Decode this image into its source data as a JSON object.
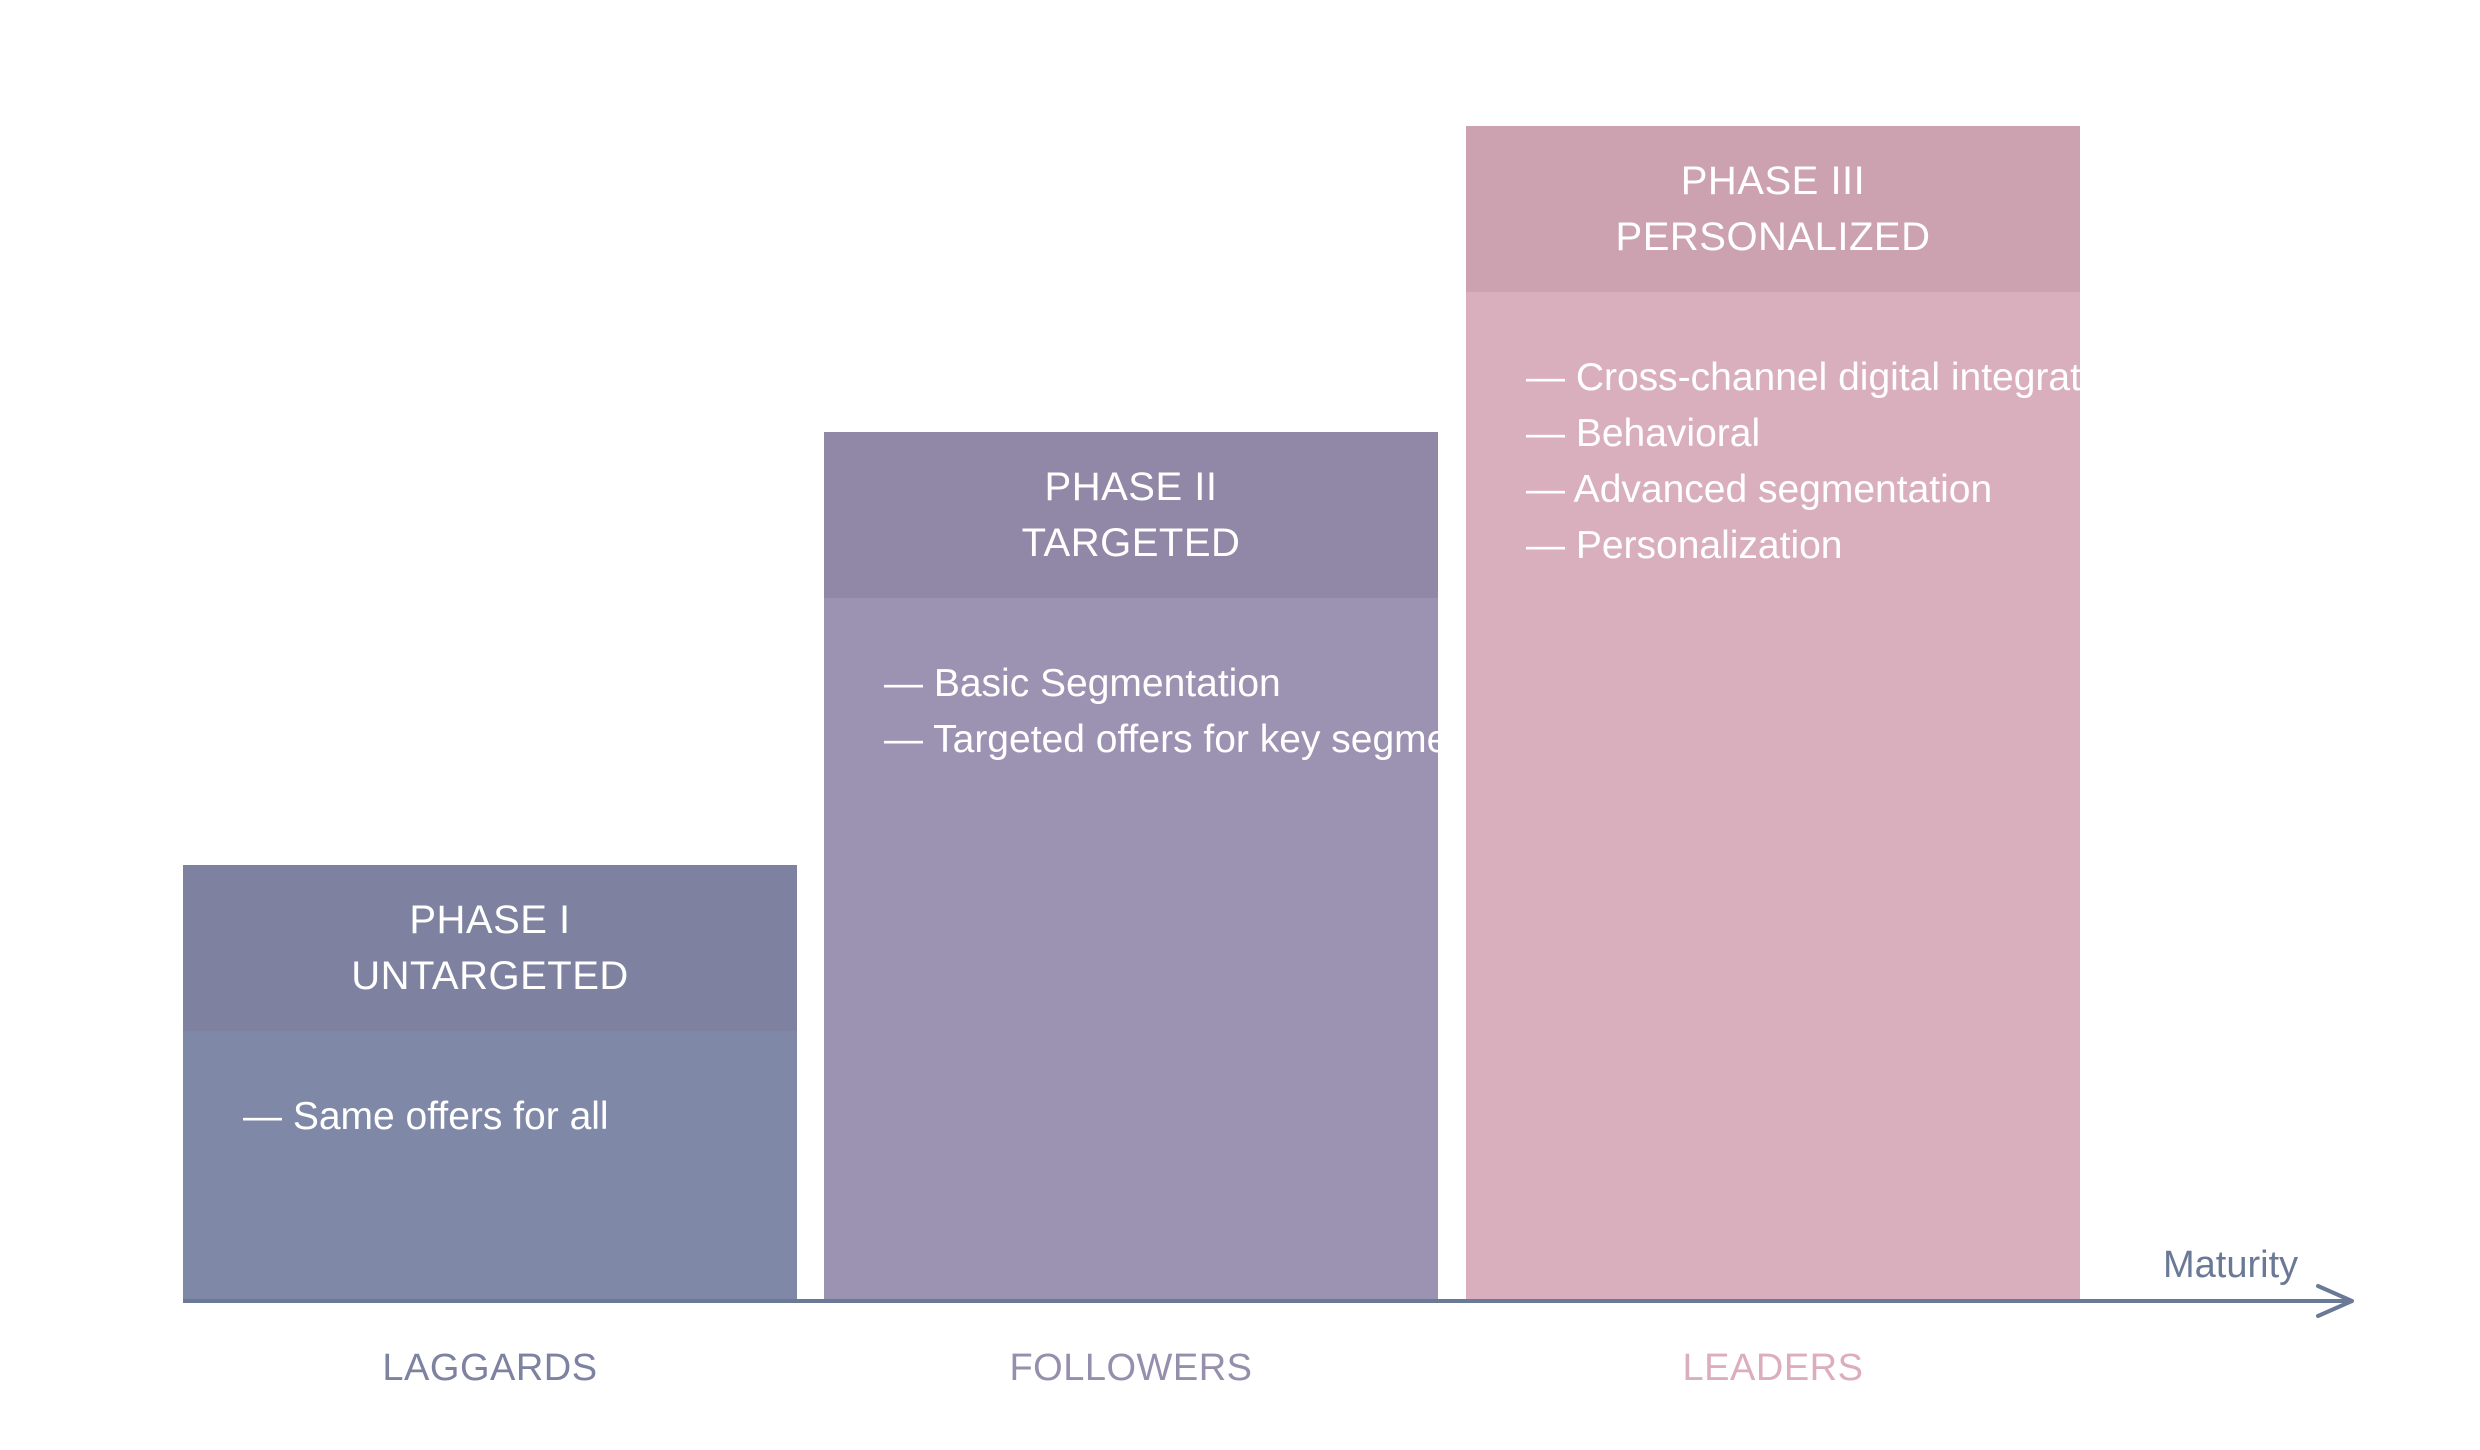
{
  "axis": {
    "title": "Maturity"
  },
  "phases": [
    {
      "phase": "PHASE I",
      "name": "UNTARGETED",
      "segment": "LAGGARDS",
      "items": [
        "— Same offers for all"
      ]
    },
    {
      "phase": "PHASE II",
      "name": "TARGETED",
      "segment": "FOLLOWERS",
      "items": [
        "— Basic Segmentation",
        "— Targeted offers for key segments"
      ]
    },
    {
      "phase": "PHASE III",
      "name": "PERSONALIZED",
      "segment": "LEADERS",
      "items": [
        "— Cross-channel digital integration",
        "— Behavioral",
        "— Advanced segmentation",
        "— Personalization"
      ]
    }
  ],
  "colors": {
    "phase_1": "#8088a8",
    "phase_2": "#9c92b2",
    "phase_3": "#d9afbe",
    "axis": "#6a7996"
  }
}
